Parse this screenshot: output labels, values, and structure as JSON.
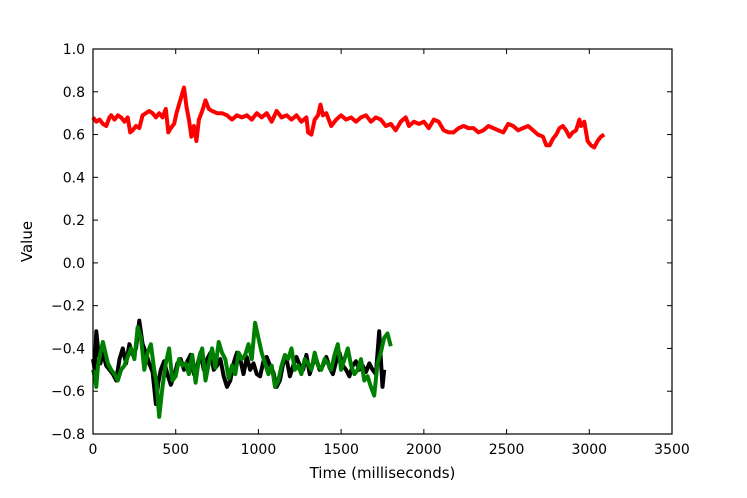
{
  "chart_data": {
    "type": "line",
    "xlabel": "Time (milliseconds)",
    "ylabel": "Value",
    "xlim": [
      0,
      3500
    ],
    "ylim": [
      -0.8,
      1.0
    ],
    "xticks": [
      0,
      500,
      1000,
      1500,
      2000,
      2500,
      3000,
      3500
    ],
    "yticks": [
      -0.8,
      -0.6,
      -0.4,
      -0.2,
      0.0,
      0.2,
      0.4,
      0.6,
      0.8,
      1.0
    ],
    "xtick_labels": [
      "0",
      "500",
      "1000",
      "1500",
      "2000",
      "2500",
      "3000",
      "3500"
    ],
    "ytick_labels": [
      "−0.8",
      "−0.6",
      "−0.4",
      "−0.2",
      "0.0",
      "0.2",
      "0.4",
      "0.6",
      "0.8",
      "1.0"
    ],
    "grid": false,
    "legend": "none",
    "series": [
      {
        "color": "#ff0000",
        "x": [
          0,
          20,
          40,
          60,
          80,
          100,
          110,
          130,
          150,
          170,
          190,
          210,
          225,
          240,
          260,
          280,
          300,
          320,
          340,
          360,
          380,
          400,
          420,
          440,
          455,
          470,
          490,
          505,
          520,
          535,
          550,
          565,
          580,
          595,
          610,
          625,
          640,
          660,
          680,
          700,
          720,
          750,
          780,
          810,
          840,
          870,
          900,
          930,
          960,
          990,
          1020,
          1050,
          1080,
          1110,
          1140,
          1170,
          1200,
          1230,
          1260,
          1290,
          1300,
          1320,
          1340,
          1360,
          1375,
          1390,
          1410,
          1440,
          1470,
          1500,
          1530,
          1560,
          1590,
          1620,
          1650,
          1680,
          1710,
          1740,
          1770,
          1800,
          1830,
          1860,
          1890,
          1910,
          1940,
          1970,
          2000,
          2030,
          2060,
          2090,
          2120,
          2150,
          2180,
          2210,
          2240,
          2270,
          2300,
          2330,
          2360,
          2390,
          2420,
          2450,
          2480,
          2510,
          2540,
          2570,
          2600,
          2630,
          2660,
          2690,
          2720,
          2740,
          2760,
          2780,
          2800,
          2820,
          2840,
          2860,
          2880,
          2900,
          2920,
          2940,
          2950,
          2970,
          2990,
          3010,
          3030,
          3050,
          3070,
          3090
        ],
        "y": [
          0.68,
          0.66,
          0.67,
          0.65,
          0.64,
          0.68,
          0.69,
          0.67,
          0.69,
          0.68,
          0.66,
          0.68,
          0.61,
          0.62,
          0.64,
          0.63,
          0.69,
          0.7,
          0.71,
          0.7,
          0.68,
          0.7,
          0.68,
          0.72,
          0.61,
          0.63,
          0.65,
          0.7,
          0.74,
          0.78,
          0.82,
          0.73,
          0.67,
          0.59,
          0.64,
          0.57,
          0.67,
          0.71,
          0.76,
          0.72,
          0.71,
          0.7,
          0.7,
          0.69,
          0.67,
          0.69,
          0.68,
          0.69,
          0.67,
          0.7,
          0.68,
          0.7,
          0.66,
          0.71,
          0.68,
          0.69,
          0.67,
          0.69,
          0.66,
          0.68,
          0.61,
          0.6,
          0.67,
          0.69,
          0.74,
          0.69,
          0.7,
          0.64,
          0.67,
          0.69,
          0.67,
          0.68,
          0.66,
          0.68,
          0.69,
          0.66,
          0.68,
          0.67,
          0.64,
          0.65,
          0.62,
          0.66,
          0.68,
          0.64,
          0.66,
          0.65,
          0.66,
          0.63,
          0.67,
          0.66,
          0.62,
          0.61,
          0.61,
          0.63,
          0.64,
          0.63,
          0.63,
          0.61,
          0.62,
          0.64,
          0.63,
          0.62,
          0.61,
          0.65,
          0.64,
          0.62,
          0.63,
          0.64,
          0.62,
          0.6,
          0.59,
          0.55,
          0.55,
          0.58,
          0.6,
          0.63,
          0.64,
          0.62,
          0.59,
          0.61,
          0.62,
          0.67,
          0.64,
          0.66,
          0.57,
          0.55,
          0.54,
          0.57,
          0.59,
          0.6
        ]
      },
      {
        "color": "#000000",
        "x": [
          0,
          10,
          20,
          30,
          45,
          60,
          80,
          100,
          120,
          140,
          160,
          180,
          200,
          220,
          240,
          260,
          280,
          300,
          320,
          340,
          360,
          380,
          395,
          410,
          430,
          450,
          470,
          490,
          510,
          530,
          550,
          570,
          590,
          610,
          630,
          650,
          670,
          690,
          710,
          730,
          750,
          770,
          790,
          810,
          830,
          850,
          870,
          890,
          910,
          930,
          950,
          970,
          990,
          1010,
          1030,
          1050,
          1070,
          1090,
          1110,
          1130,
          1150,
          1170,
          1190,
          1210,
          1230,
          1250,
          1270,
          1290,
          1310,
          1330,
          1350,
          1370,
          1390,
          1410,
          1430,
          1450,
          1470,
          1490,
          1510,
          1530,
          1550,
          1570,
          1590,
          1610,
          1630,
          1650,
          1670,
          1690,
          1710,
          1730,
          1750,
          1760
        ],
        "y": [
          -0.45,
          -0.5,
          -0.32,
          -0.4,
          -0.47,
          -0.42,
          -0.48,
          -0.5,
          -0.52,
          -0.55,
          -0.45,
          -0.4,
          -0.47,
          -0.38,
          -0.43,
          -0.4,
          -0.27,
          -0.38,
          -0.42,
          -0.47,
          -0.51,
          -0.66,
          -0.56,
          -0.5,
          -0.46,
          -0.52,
          -0.57,
          -0.53,
          -0.47,
          -0.45,
          -0.5,
          -0.46,
          -0.43,
          -0.52,
          -0.48,
          -0.42,
          -0.5,
          -0.45,
          -0.42,
          -0.5,
          -0.48,
          -0.45,
          -0.53,
          -0.58,
          -0.55,
          -0.47,
          -0.42,
          -0.45,
          -0.52,
          -0.44,
          -0.5,
          -0.47,
          -0.52,
          -0.53,
          -0.46,
          -0.44,
          -0.48,
          -0.51,
          -0.58,
          -0.55,
          -0.47,
          -0.45,
          -0.53,
          -0.48,
          -0.44,
          -0.48,
          -0.5,
          -0.43,
          -0.52,
          -0.47,
          -0.45,
          -0.5,
          -0.48,
          -0.44,
          -0.49,
          -0.52,
          -0.46,
          -0.42,
          -0.48,
          -0.5,
          -0.53,
          -0.48,
          -0.46,
          -0.5,
          -0.48,
          -0.51,
          -0.47,
          -0.5,
          -0.52,
          -0.32,
          -0.58,
          -0.5
        ]
      },
      {
        "color": "#008000",
        "x": [
          0,
          10,
          20,
          30,
          45,
          60,
          75,
          90,
          110,
          130,
          150,
          170,
          190,
          210,
          230,
          250,
          270,
          290,
          310,
          330,
          350,
          370,
          385,
          400,
          420,
          440,
          460,
          480,
          500,
          520,
          540,
          560,
          580,
          600,
          620,
          640,
          660,
          680,
          700,
          720,
          740,
          760,
          780,
          800,
          820,
          840,
          860,
          880,
          900,
          920,
          940,
          960,
          980,
          1000,
          1020,
          1040,
          1060,
          1080,
          1100,
          1120,
          1140,
          1160,
          1180,
          1200,
          1220,
          1240,
          1260,
          1280,
          1300,
          1320,
          1340,
          1360,
          1380,
          1400,
          1420,
          1440,
          1460,
          1480,
          1500,
          1520,
          1540,
          1560,
          1580,
          1600,
          1620,
          1640,
          1660,
          1680,
          1700,
          1720,
          1740,
          1760,
          1780,
          1800
        ],
        "y": [
          -0.5,
          -0.53,
          -0.58,
          -0.48,
          -0.42,
          -0.37,
          -0.42,
          -0.47,
          -0.5,
          -0.52,
          -0.55,
          -0.5,
          -0.48,
          -0.44,
          -0.4,
          -0.45,
          -0.3,
          -0.35,
          -0.5,
          -0.42,
          -0.38,
          -0.5,
          -0.57,
          -0.72,
          -0.58,
          -0.47,
          -0.4,
          -0.55,
          -0.53,
          -0.45,
          -0.48,
          -0.47,
          -0.52,
          -0.43,
          -0.56,
          -0.45,
          -0.4,
          -0.55,
          -0.47,
          -0.4,
          -0.49,
          -0.37,
          -0.42,
          -0.45,
          -0.54,
          -0.48,
          -0.52,
          -0.42,
          -0.45,
          -0.43,
          -0.38,
          -0.45,
          -0.28,
          -0.35,
          -0.42,
          -0.47,
          -0.52,
          -0.48,
          -0.58,
          -0.55,
          -0.48,
          -0.43,
          -0.45,
          -0.4,
          -0.5,
          -0.48,
          -0.52,
          -0.45,
          -0.47,
          -0.5,
          -0.42,
          -0.48,
          -0.5,
          -0.45,
          -0.47,
          -0.5,
          -0.43,
          -0.38,
          -0.5,
          -0.45,
          -0.4,
          -0.48,
          -0.52,
          -0.5,
          -0.45,
          -0.55,
          -0.53,
          -0.58,
          -0.62,
          -0.47,
          -0.42,
          -0.35,
          -0.33,
          -0.39
        ]
      }
    ]
  }
}
